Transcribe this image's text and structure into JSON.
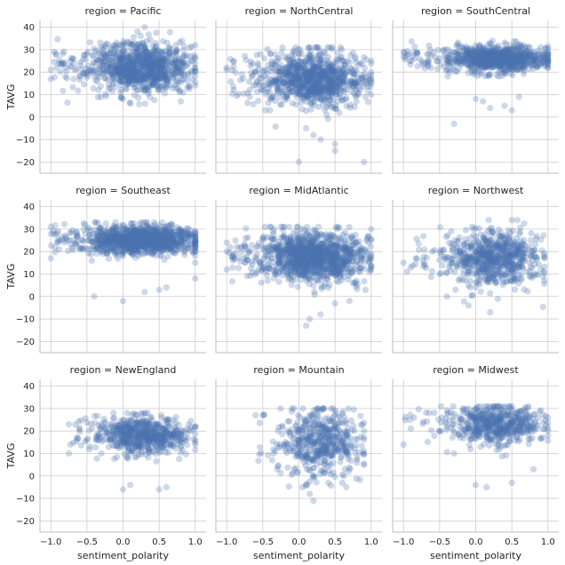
{
  "chart_data": {
    "type": "scatter",
    "layout": "facet-grid 3x3",
    "xlabel": "sentiment_polarity",
    "ylabel": "TAVG",
    "xlim": [
      -1.15,
      1.15
    ],
    "ylim": [
      -25,
      43
    ],
    "xticks": [
      -1.0,
      -0.5,
      0.0,
      0.5,
      1.0
    ],
    "yticks": [
      -20,
      -10,
      0,
      10,
      20,
      30,
      40
    ],
    "grid": true,
    "point_color": "#4c72b0",
    "panels": [
      {
        "title": "region = Pacific",
        "row": 0,
        "col": 0,
        "summary": {
          "x_range": [
            -1.0,
            1.0
          ],
          "y_range": [
            4,
            40
          ],
          "density_center": [
            0.25,
            22
          ],
          "density_spread": [
            0.33,
            5.5
          ],
          "n_points": 950
        },
        "points": [
          [
            -1.0,
            17
          ],
          [
            -1.0,
            21
          ],
          [
            -0.85,
            24
          ],
          [
            -0.8,
            22
          ],
          [
            -0.7,
            26
          ],
          [
            -0.6,
            18
          ],
          [
            -0.5,
            28
          ],
          [
            0.0,
            8
          ],
          [
            0.1,
            6
          ],
          [
            0.2,
            38
          ],
          [
            0.3,
            40
          ],
          [
            0.8,
            7
          ],
          [
            1.0,
            14
          ],
          [
            1.0,
            20
          ],
          [
            1.0,
            26
          ],
          [
            1.0,
            32
          ]
        ]
      },
      {
        "title": "region = NorthCentral",
        "row": 0,
        "col": 1,
        "summary": {
          "x_range": [
            -1.0,
            1.0
          ],
          "y_range": [
            -20,
            31
          ],
          "density_center": [
            0.2,
            17
          ],
          "density_spread": [
            0.33,
            6
          ],
          "n_points": 950
        },
        "points": [
          [
            -1.0,
            21
          ],
          [
            -1.0,
            22
          ],
          [
            -0.6,
            20
          ],
          [
            -0.4,
            3
          ],
          [
            0.0,
            -20
          ],
          [
            0.1,
            -5
          ],
          [
            0.2,
            -8
          ],
          [
            0.3,
            -10
          ],
          [
            0.5,
            -12
          ],
          [
            0.5,
            -15
          ],
          [
            0.9,
            -20
          ],
          [
            1.0,
            10
          ],
          [
            1.0,
            15
          ],
          [
            1.0,
            20
          ],
          [
            1.0,
            25
          ]
        ]
      },
      {
        "title": "region = SouthCentral",
        "row": 0,
        "col": 2,
        "summary": {
          "x_range": [
            -1.0,
            1.0
          ],
          "y_range": [
            -4,
            34
          ],
          "density_center": [
            0.3,
            26
          ],
          "density_spread": [
            0.33,
            3
          ],
          "n_points": 900
        },
        "points": [
          [
            -1.0,
            27
          ],
          [
            -1.0,
            29
          ],
          [
            -0.5,
            26
          ],
          [
            -0.3,
            -3
          ],
          [
            0.0,
            8
          ],
          [
            0.1,
            7
          ],
          [
            0.2,
            4
          ],
          [
            0.4,
            5
          ],
          [
            0.5,
            3
          ],
          [
            0.6,
            9
          ],
          [
            1.0,
            22
          ],
          [
            1.0,
            25
          ],
          [
            1.0,
            28
          ]
        ]
      },
      {
        "title": "region = Southeast",
        "row": 1,
        "col": 0,
        "summary": {
          "x_range": [
            -1.0,
            1.0
          ],
          "y_range": [
            -2,
            33
          ],
          "density_center": [
            0.25,
            25
          ],
          "density_spread": [
            0.35,
            3
          ],
          "n_points": 1200
        },
        "points": [
          [
            -1.0,
            17
          ],
          [
            -1.0,
            28
          ],
          [
            -1.0,
            31
          ],
          [
            -0.4,
            0
          ],
          [
            0.0,
            -2
          ],
          [
            0.3,
            2
          ],
          [
            0.5,
            3
          ],
          [
            0.6,
            4
          ],
          [
            1.0,
            8
          ],
          [
            1.0,
            15
          ],
          [
            1.0,
            20
          ],
          [
            1.0,
            25
          ],
          [
            1.0,
            29
          ]
        ]
      },
      {
        "title": "region = MidAtlantic",
        "row": 1,
        "col": 1,
        "summary": {
          "x_range": [
            -1.0,
            1.0
          ],
          "y_range": [
            -14,
            31
          ],
          "density_center": [
            0.2,
            18
          ],
          "density_spread": [
            0.33,
            5.5
          ],
          "n_points": 1200
        },
        "points": [
          [
            -1.0,
            12
          ],
          [
            -1.0,
            20
          ],
          [
            -1.0,
            24
          ],
          [
            -0.6,
            16
          ],
          [
            0.1,
            -13
          ],
          [
            0.15,
            -10
          ],
          [
            0.3,
            -8
          ],
          [
            0.5,
            -3
          ],
          [
            0.7,
            -2
          ],
          [
            1.0,
            12
          ],
          [
            1.0,
            18
          ],
          [
            1.0,
            25
          ],
          [
            1.0,
            30
          ]
        ]
      },
      {
        "title": "region = Northwest",
        "row": 1,
        "col": 2,
        "summary": {
          "x_range": [
            -1.0,
            0.95
          ],
          "y_range": [
            -7,
            34
          ],
          "density_center": [
            0.25,
            17
          ],
          "density_spread": [
            0.3,
            6
          ],
          "n_points": 700
        },
        "points": [
          [
            -1.0,
            15
          ],
          [
            -0.9,
            13
          ],
          [
            -0.6,
            20
          ],
          [
            -0.5,
            10
          ],
          [
            -0.4,
            0
          ],
          [
            -0.1,
            -4
          ],
          [
            0.2,
            -7
          ],
          [
            0.5,
            34
          ],
          [
            0.9,
            12
          ],
          [
            0.95,
            18
          ]
        ]
      },
      {
        "title": "region = NewEngland",
        "row": 2,
        "col": 0,
        "summary": {
          "x_range": [
            -0.75,
            1.0
          ],
          "y_range": [
            -6,
            28
          ],
          "density_center": [
            0.25,
            18
          ],
          "density_spread": [
            0.3,
            4
          ],
          "n_points": 650
        },
        "points": [
          [
            -0.75,
            23
          ],
          [
            -0.75,
            10
          ],
          [
            -0.5,
            16
          ],
          [
            -0.3,
            10
          ],
          [
            0.0,
            -6
          ],
          [
            0.1,
            -4
          ],
          [
            0.5,
            -6
          ],
          [
            0.6,
            -5
          ],
          [
            1.0,
            14
          ],
          [
            1.0,
            22
          ]
        ]
      },
      {
        "title": "region = Mountain",
        "row": 2,
        "col": 1,
        "summary": {
          "x_range": [
            -0.6,
            0.9
          ],
          "y_range": [
            -11,
            30
          ],
          "density_center": [
            0.3,
            15
          ],
          "density_spread": [
            0.28,
            7.5
          ],
          "n_points": 500
        },
        "points": [
          [
            -0.6,
            27
          ],
          [
            -0.5,
            27
          ],
          [
            -0.35,
            10
          ],
          [
            -0.3,
            3
          ],
          [
            0.05,
            -5
          ],
          [
            0.15,
            -8
          ],
          [
            0.2,
            -11
          ],
          [
            0.6,
            -3
          ],
          [
            0.9,
            10
          ],
          [
            0.9,
            20
          ]
        ]
      },
      {
        "title": "region = Midwest",
        "row": 2,
        "col": 2,
        "summary": {
          "x_range": [
            -1.0,
            1.0
          ],
          "y_range": [
            -5,
            31
          ],
          "density_center": [
            0.3,
            23
          ],
          "density_spread": [
            0.3,
            4.5
          ],
          "n_points": 550
        },
        "points": [
          [
            -1.0,
            14
          ],
          [
            -0.5,
            20
          ],
          [
            -0.4,
            23
          ],
          [
            -0.3,
            10
          ],
          [
            0.0,
            -4
          ],
          [
            0.15,
            -5
          ],
          [
            0.5,
            -3
          ],
          [
            0.8,
            3
          ],
          [
            1.0,
            18
          ],
          [
            1.0,
            26
          ]
        ]
      }
    ]
  }
}
